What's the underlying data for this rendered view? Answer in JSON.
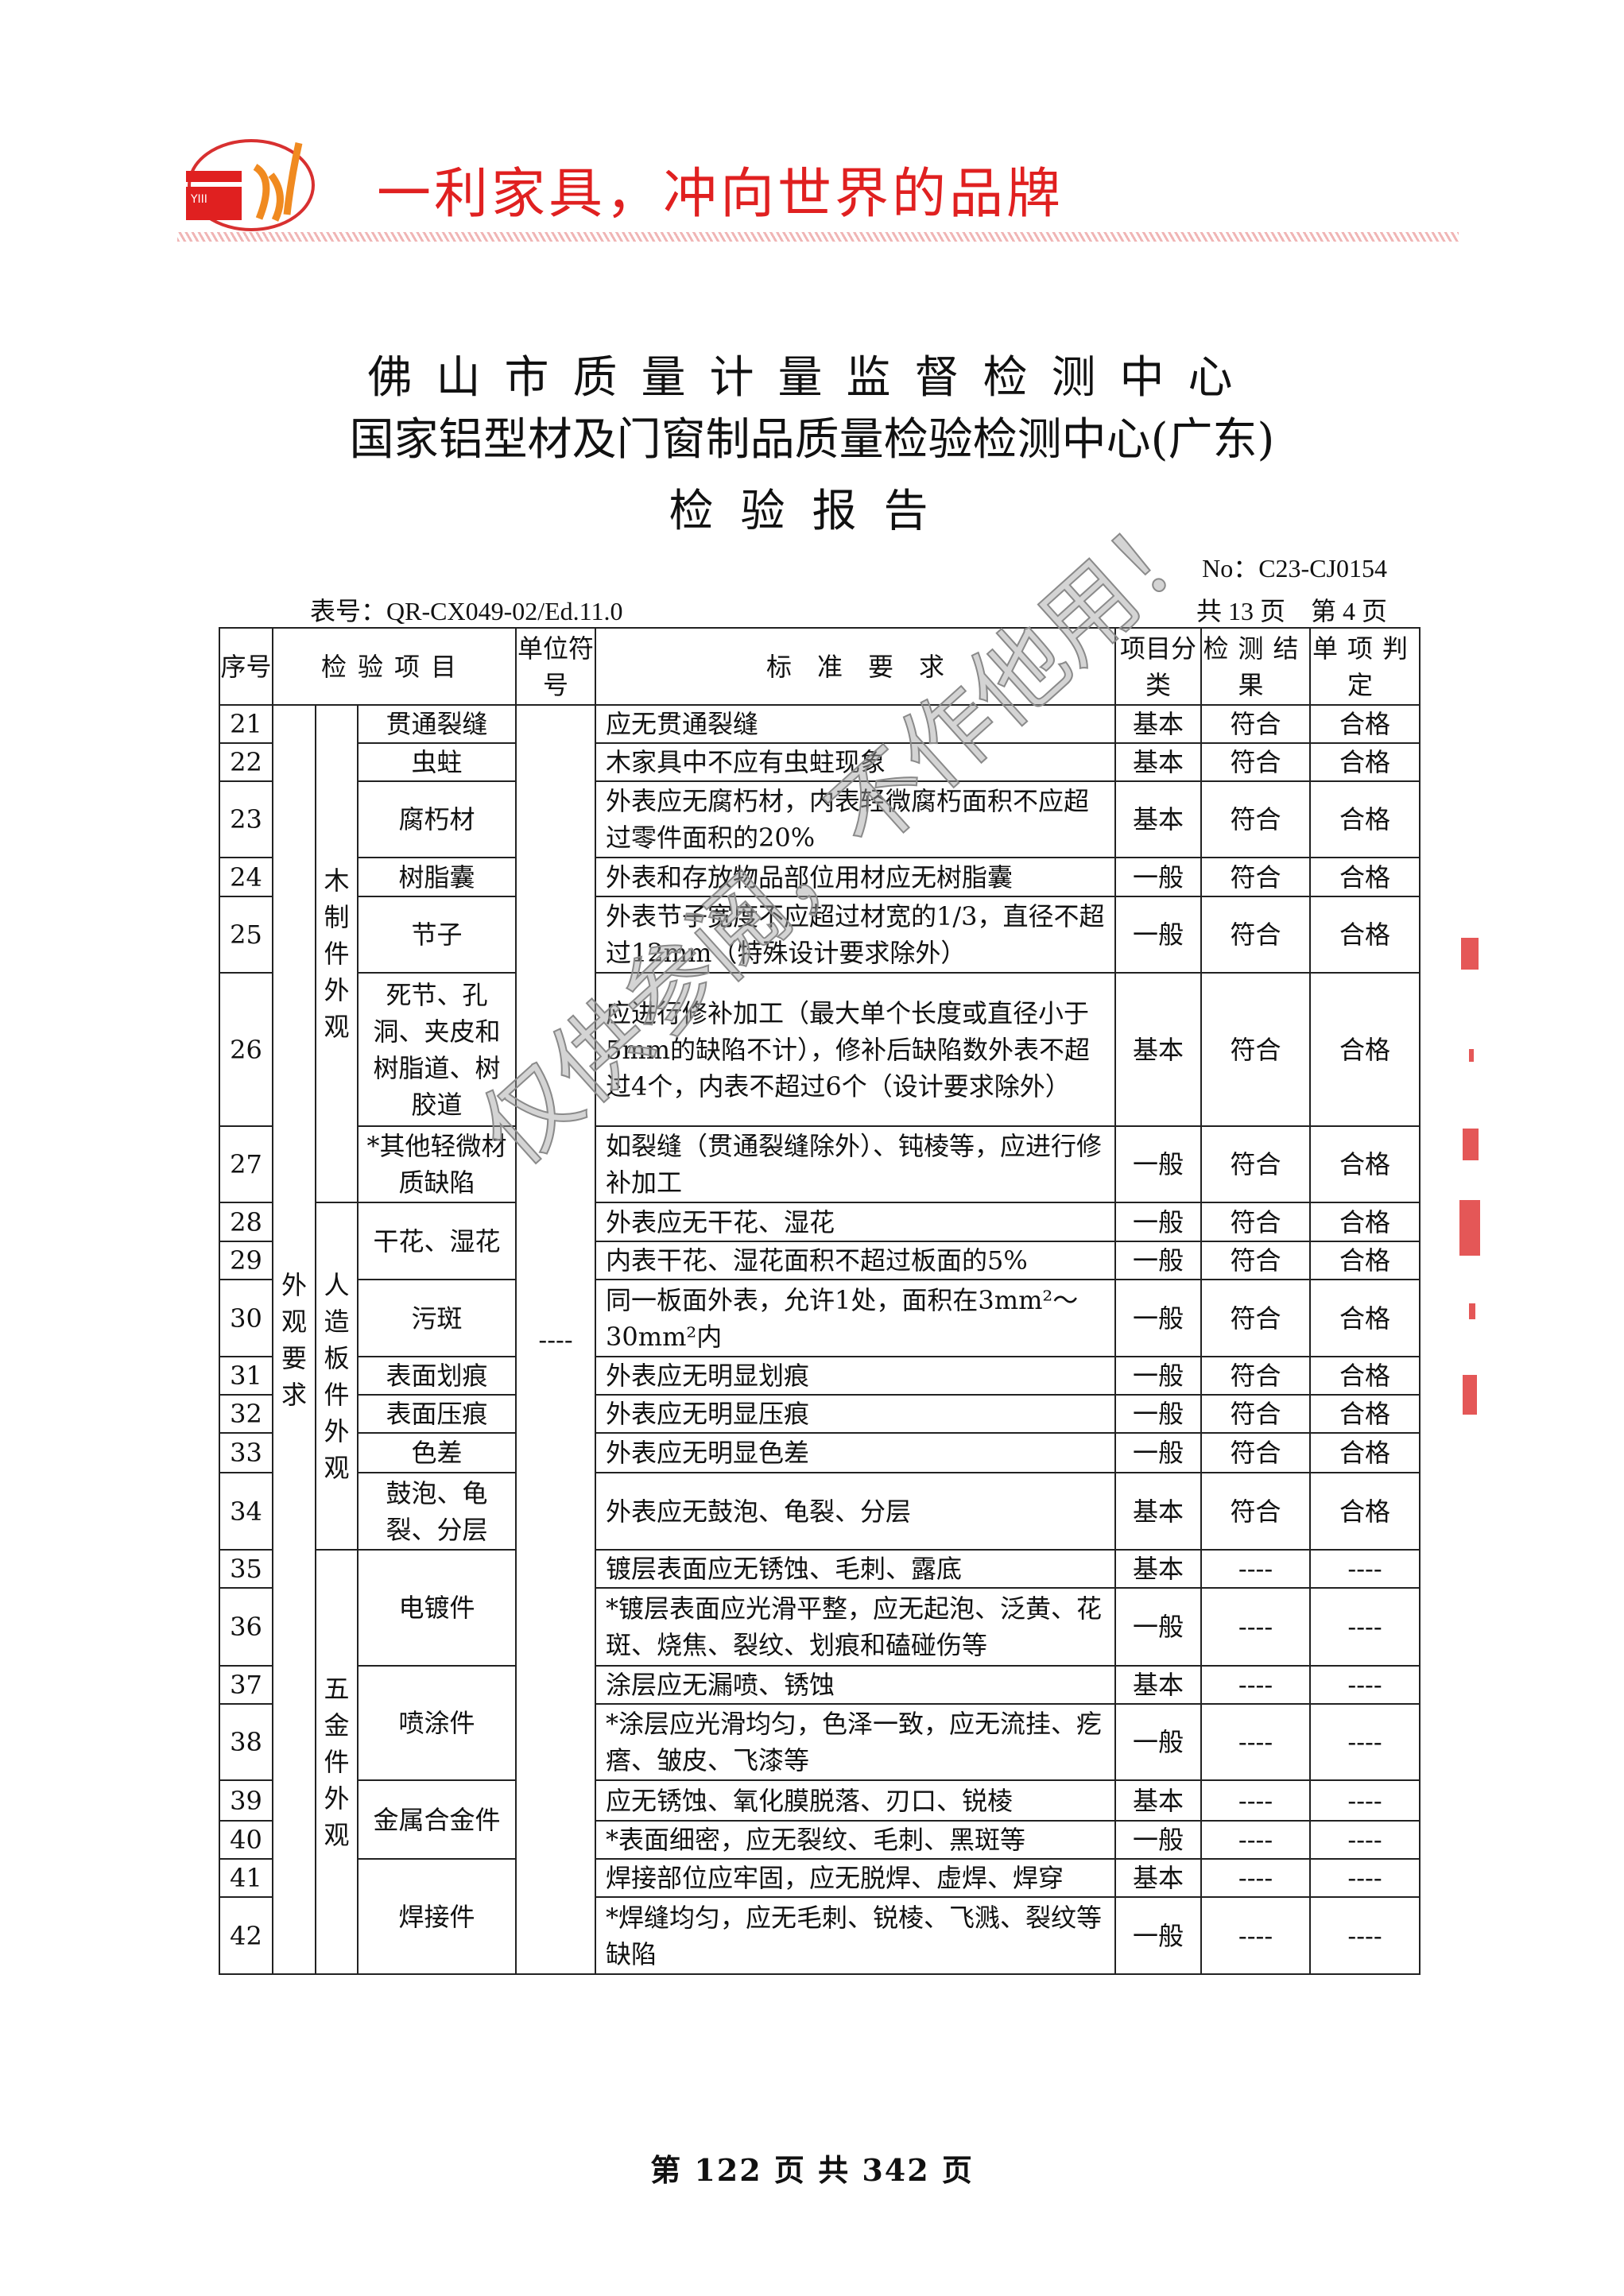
{
  "header": {
    "slogan": "一利家具，冲向世界的品牌",
    "logo_text": "一利",
    "brand_color": "#e02020"
  },
  "title": {
    "line1": "佛山市质量计量监督检测中心",
    "line2": "国家铝型材及门窗制品质量检验检测中心(广东)",
    "line3": "检验报告"
  },
  "report_no": "No：C23-CJ0154",
  "form_no": "表号：QR-CX049-02/Ed.11.0",
  "page_info": "共 13 页　第 4 页",
  "table": {
    "headers": {
      "no": "序号",
      "item": "检验项目",
      "unit": "单位符号",
      "requirement": "标　准　要　求",
      "category": "项目分类",
      "result": "检测结果",
      "verdict": "单项判定"
    },
    "top_group": "外观要求",
    "unit_value": "----",
    "groups": [
      {
        "name": "木制件外观",
        "items": [
          {
            "name": "贯通裂缝",
            "rows": [
              {
                "no": "21",
                "requirement": "应无贯通裂缝",
                "category": "基本",
                "result": "符合",
                "verdict": "合格"
              }
            ]
          },
          {
            "name": "虫蛀",
            "rows": [
              {
                "no": "22",
                "requirement": "木家具中不应有虫蛀现象",
                "category": "基本",
                "result": "符合",
                "verdict": "合格"
              }
            ]
          },
          {
            "name": "腐朽材",
            "rows": [
              {
                "no": "23",
                "requirement": "外表应无腐朽材，内表轻微腐朽面积不应超过零件面积的20%",
                "category": "基本",
                "result": "符合",
                "verdict": "合格"
              }
            ]
          },
          {
            "name": "树脂囊",
            "rows": [
              {
                "no": "24",
                "requirement": "外表和存放物品部位用材应无树脂囊",
                "category": "一般",
                "result": "符合",
                "verdict": "合格"
              }
            ]
          },
          {
            "name": "节子",
            "rows": [
              {
                "no": "25",
                "requirement": "外表节子宽度不应超过材宽的1/3，直径不超过12mm（特殊设计要求除外）",
                "category": "一般",
                "result": "符合",
                "verdict": "合格"
              }
            ]
          },
          {
            "name": "死节、孔洞、夹皮和树脂道、树胶道",
            "rows": [
              {
                "no": "26",
                "requirement": "应进行修补加工（最大单个长度或直径小于5mm的缺陷不计），修补后缺陷数外表不超过4个，内表不超过6个（设计要求除外）",
                "category": "基本",
                "result": "符合",
                "verdict": "合格"
              }
            ]
          },
          {
            "name": "*其他轻微材质缺陷",
            "rows": [
              {
                "no": "27",
                "requirement": "如裂缝（贯通裂缝除外）、钝棱等，应进行修补加工",
                "category": "一般",
                "result": "符合",
                "verdict": "合格"
              }
            ]
          }
        ]
      },
      {
        "name": "人造板件外观",
        "items": [
          {
            "name": "干花、湿花",
            "rows": [
              {
                "no": "28",
                "requirement": "外表应无干花、湿花",
                "category": "一般",
                "result": "符合",
                "verdict": "合格"
              },
              {
                "no": "29",
                "requirement": "内表干花、湿花面积不超过板面的5%",
                "category": "一般",
                "result": "符合",
                "verdict": "合格"
              }
            ]
          },
          {
            "name": "污斑",
            "rows": [
              {
                "no": "30",
                "requirement": "同一板面外表，允许1处，面积在3mm²～30mm²内",
                "category": "一般",
                "result": "符合",
                "verdict": "合格"
              }
            ]
          },
          {
            "name": "表面划痕",
            "rows": [
              {
                "no": "31",
                "requirement": "外表应无明显划痕",
                "category": "一般",
                "result": "符合",
                "verdict": "合格"
              }
            ]
          },
          {
            "name": "表面压痕",
            "rows": [
              {
                "no": "32",
                "requirement": "外表应无明显压痕",
                "category": "一般",
                "result": "符合",
                "verdict": "合格"
              }
            ]
          },
          {
            "name": "色差",
            "rows": [
              {
                "no": "33",
                "requirement": "外表应无明显色差",
                "category": "一般",
                "result": "符合",
                "verdict": "合格"
              }
            ]
          },
          {
            "name": "鼓泡、龟裂、分层",
            "rows": [
              {
                "no": "34",
                "requirement": "外表应无鼓泡、龟裂、分层",
                "category": "基本",
                "result": "符合",
                "verdict": "合格"
              }
            ]
          }
        ]
      },
      {
        "name": "五金件外观",
        "items": [
          {
            "name": "电镀件",
            "rows": [
              {
                "no": "35",
                "requirement": "镀层表面应无锈蚀、毛刺、露底",
                "category": "基本",
                "result": "----",
                "verdict": "----"
              },
              {
                "no": "36",
                "requirement": "*镀层表面应光滑平整，应无起泡、泛黄、花斑、烧焦、裂纹、划痕和磕碰伤等",
                "category": "一般",
                "result": "----",
                "verdict": "----"
              }
            ]
          },
          {
            "name": "喷涂件",
            "rows": [
              {
                "no": "37",
                "requirement": "涂层应无漏喷、锈蚀",
                "category": "基本",
                "result": "----",
                "verdict": "----"
              },
              {
                "no": "38",
                "requirement": "*涂层应光滑均匀，色泽一致，应无流挂、疙瘩、皱皮、飞漆等",
                "category": "一般",
                "result": "----",
                "verdict": "----"
              }
            ]
          },
          {
            "name": "金属合金件",
            "rows": [
              {
                "no": "39",
                "requirement": "应无锈蚀、氧化膜脱落、刃口、锐棱",
                "category": "基本",
                "result": "----",
                "verdict": "----"
              },
              {
                "no": "40",
                "requirement": "*表面细密，应无裂纹、毛刺、黑斑等",
                "category": "一般",
                "result": "----",
                "verdict": "----"
              }
            ]
          },
          {
            "name": "焊接件",
            "rows": [
              {
                "no": "41",
                "requirement": "焊接部位应牢固，应无脱焊、虚焊、焊穿",
                "category": "基本",
                "result": "----",
                "verdict": "----"
              },
              {
                "no": "42",
                "requirement": "*焊缝均匀，应无毛刺、锐棱、飞溅、裂纹等缺陷",
                "category": "一般",
                "result": "----",
                "verdict": "----"
              }
            ]
          }
        ]
      }
    ]
  },
  "watermark": "仅供参阅，不作他用！",
  "footer": "第 122 页 共 342 页"
}
